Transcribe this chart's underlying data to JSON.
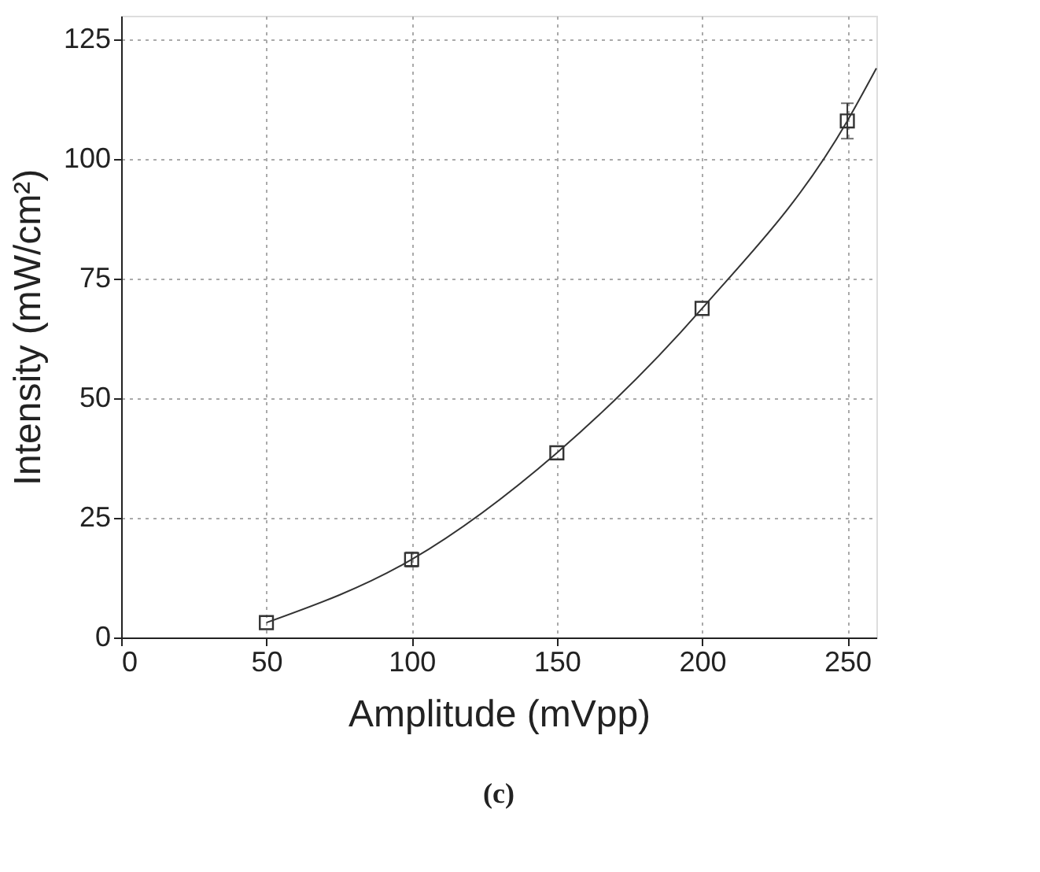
{
  "chart_data": {
    "type": "scatter",
    "xlabel": "Amplitude (mVpp)",
    "ylabel": "Intensity (mW/cm²)",
    "xlim": [
      0,
      260
    ],
    "ylim": [
      0,
      130
    ],
    "xticks": [
      0,
      50,
      100,
      150,
      200,
      250
    ],
    "yticks": [
      0,
      25,
      50,
      75,
      100,
      125
    ],
    "grid": true,
    "marker": "square",
    "series": [
      {
        "type": "line",
        "color": "#333333",
        "x": [
          50,
          100,
          150,
          200,
          250,
          260
        ],
        "values": [
          3.1,
          16.3,
          38.6,
          68.8,
          108,
          119
        ],
        "marker": "none",
        "line_style": "solid"
      },
      {
        "color": "#333333",
        "x": [
          50,
          100,
          150,
          200,
          250
        ],
        "values": [
          3.1,
          16.3,
          38.6,
          68.8,
          108
        ],
        "errors": [
          null,
          1.5,
          null,
          null,
          3.7
        ]
      }
    ],
    "annotations": [
      "(c)"
    ]
  }
}
